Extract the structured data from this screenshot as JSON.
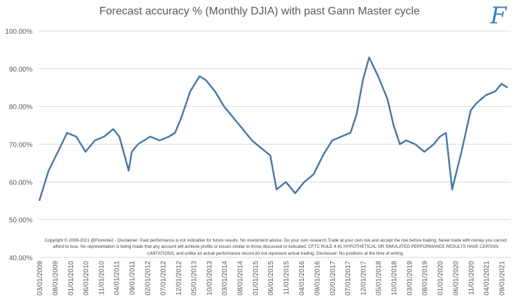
{
  "chart_data": {
    "type": "line",
    "title": "Forecast accuracy % (Monthly DJIA)  with past Gann Master cycle",
    "logo_text": "F",
    "disclaimer": "Copyright © 2008-2021 @Fiorente2 -  Disclaimer: Past performance is not indicative for future results. No investment advice. Do your own research.Trade at your own risk and accept the risk before trading. Never trade with money you cannot afford to lose. No representation is being made that any account will achieve profits or losses similar to those discussed or indicated. CFTC RULE 4.41 HYPOTHETICAL OR SIMULATED PERFORMANCE RESULTS HAVE CERTAIN LIMITATIONS, and unlike an actual performance record,do not represent actual trading. Disclosure: No positions at the time of writing.",
    "ylim": [
      40,
      100
    ],
    "yticks": [
      "40.00%",
      "50.00%",
      "60.00%",
      "70.00%",
      "80.00%",
      "90.00%",
      "100.00%"
    ],
    "ytick_values": [
      40,
      50,
      60,
      70,
      80,
      90,
      100
    ],
    "xlim": [
      "2009-03-01",
      "2021-12-01"
    ],
    "xticks": [
      "03/01/2009",
      "08/01/2009",
      "01/01/2010",
      "06/01/2010",
      "11/01/2010",
      "04/01/2011",
      "09/01/2011",
      "02/01/2012",
      "07/01/2012",
      "12/01/2012",
      "05/01/2013",
      "10/01/2013",
      "03/01/2014",
      "08/01/2014",
      "01/01/2015",
      "06/01/2015",
      "11/01/2015",
      "04/01/2016",
      "09/01/2016",
      "02/01/2017",
      "07/01/2017",
      "12/01/2017",
      "05/01/2018",
      "10/01/2018",
      "03/01/2019",
      "08/01/2019",
      "01/01/2020",
      "06/01/2020",
      "11/01/2020",
      "04/01/2021",
      "09/01/2021"
    ],
    "grid": true,
    "legend": "none",
    "color": "#4a78a8",
    "series": [
      {
        "x": [
          "2009-03-01",
          "2009-06-01",
          "2009-09-01",
          "2009-12-01",
          "2010-03-01",
          "2010-06-01",
          "2010-09-01",
          "2010-12-01",
          "2011-03-01",
          "2011-05-01",
          "2011-08-01",
          "2011-09-01",
          "2011-11-01",
          "2012-03-01",
          "2012-06-01",
          "2012-09-01",
          "2012-11-01",
          "2013-01-01",
          "2013-04-01",
          "2013-07-01",
          "2013-09-01",
          "2013-12-01",
          "2014-03-01",
          "2014-06-01",
          "2014-09-01",
          "2014-12-01",
          "2015-03-01",
          "2015-06-01",
          "2015-08-01",
          "2015-11-01",
          "2016-02-01",
          "2016-05-01",
          "2016-08-01",
          "2016-11-01",
          "2017-02-01",
          "2017-05-01",
          "2017-08-01",
          "2017-10-01",
          "2017-12-01",
          "2018-02-01",
          "2018-05-01",
          "2018-08-01",
          "2018-10-01",
          "2018-12-01",
          "2019-02-01",
          "2019-05-01",
          "2019-08-01",
          "2019-11-01",
          "2020-01-01",
          "2020-03-01",
          "2020-05-01",
          "2020-08-01",
          "2020-11-01",
          "2021-01-01",
          "2021-04-01",
          "2021-07-01",
          "2021-09-01",
          "2021-11-01"
        ],
        "values": [
          55,
          63,
          68,
          73,
          72,
          68,
          71,
          72,
          74,
          72,
          63,
          68,
          70,
          72,
          71,
          72,
          73,
          77,
          84,
          88,
          87,
          84,
          80,
          77,
          74,
          71,
          69,
          67,
          58,
          60,
          57,
          60,
          62,
          67,
          71,
          72,
          73,
          78,
          87,
          93,
          88,
          82,
          75,
          70,
          71,
          70,
          68,
          70,
          72,
          73,
          58,
          68,
          79,
          81,
          83,
          84,
          86,
          85
        ]
      }
    ]
  }
}
